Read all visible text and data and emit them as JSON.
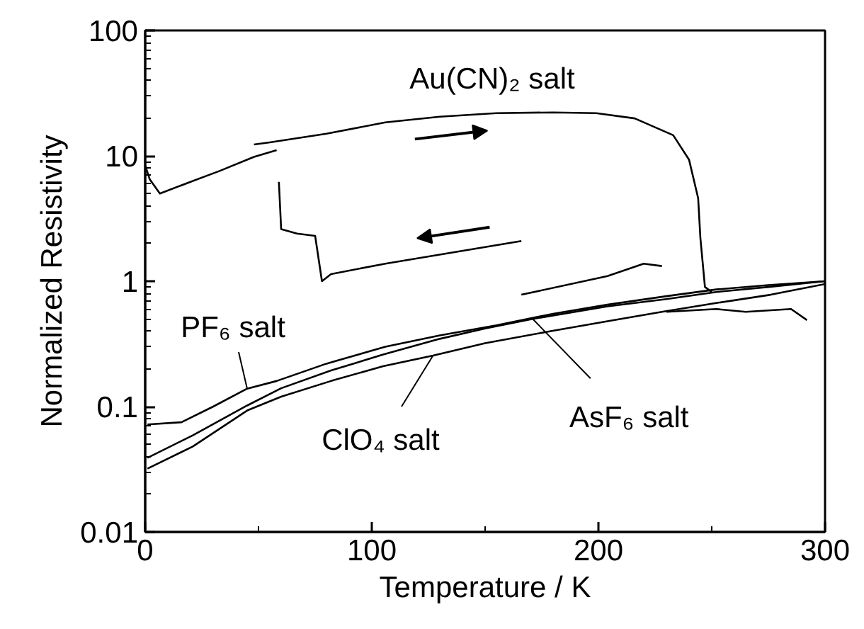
{
  "chart_data": {
    "type": "line",
    "xlabel": "Temperature / K",
    "ylabel": "Normalized Resistivity",
    "log": "y",
    "xlim": [
      0,
      300
    ],
    "ylim": [
      0.01,
      100
    ],
    "xticks": [
      0,
      {
        "value": 50,
        "label": null
      },
      100,
      {
        "value": 150,
        "label": null
      },
      200,
      {
        "value": 250,
        "label": null
      },
      300
    ],
    "yticks": [
      0.01,
      {
        "value": 0.02,
        "label": null
      },
      {
        "value": 0.03,
        "label": null
      },
      {
        "value": 0.04,
        "label": null
      },
      {
        "value": 0.05,
        "label": null
      },
      {
        "value": 0.06,
        "label": null
      },
      {
        "value": 0.07,
        "label": null
      },
      {
        "value": 0.08,
        "label": null
      },
      {
        "value": 0.09,
        "label": null
      },
      0.1,
      {
        "value": 0.2,
        "label": null
      },
      {
        "value": 0.3,
        "label": null
      },
      {
        "value": 0.4,
        "label": null
      },
      {
        "value": 0.5,
        "label": null
      },
      {
        "value": 0.6,
        "label": null
      },
      {
        "value": 0.7,
        "label": null
      },
      {
        "value": 0.8,
        "label": null
      },
      {
        "value": 0.9,
        "label": null
      },
      1,
      {
        "value": 2,
        "label": null
      },
      {
        "value": 3,
        "label": null
      },
      {
        "value": 4,
        "label": null
      },
      {
        "value": 5,
        "label": null
      },
      {
        "value": 6,
        "label": null
      },
      {
        "value": 7,
        "label": null
      },
      {
        "value": 8,
        "label": null
      },
      {
        "value": 9,
        "label": null
      },
      10,
      {
        "value": 20,
        "label": null
      },
      {
        "value": 30,
        "label": null
      },
      {
        "value": 40,
        "label": null
      },
      {
        "value": 50,
        "label": null
      },
      {
        "value": 60,
        "label": null
      },
      {
        "value": 70,
        "label": null
      },
      {
        "value": 80,
        "label": null
      },
      {
        "value": 90,
        "label": null
      },
      100
    ],
    "grid": false,
    "marker": "none",
    "line_style": "solid",
    "series": [
      {
        "color": "#000000",
        "x": [
          1,
          16,
          30,
          45,
          58,
          80,
          106,
          130,
          155,
          180,
          204,
          230,
          252,
          275,
          300
        ],
        "values": [
          0.072,
          0.075,
          0.1,
          0.139,
          0.16,
          0.22,
          0.3,
          0.37,
          0.445,
          0.55,
          0.65,
          0.76,
          0.86,
          0.93,
          1.0
        ]
      },
      {
        "color": "#000000",
        "x": [
          1,
          21,
          45,
          60,
          82,
          105,
          130,
          150,
          171,
          204,
          230,
          252,
          275,
          300
        ],
        "values": [
          0.039,
          0.059,
          0.102,
          0.14,
          0.194,
          0.26,
          0.347,
          0.42,
          0.5,
          0.63,
          0.72,
          0.82,
          0.9,
          1.0
        ]
      },
      {
        "color": "#000000",
        "x": [
          1,
          21,
          45,
          60,
          82,
          105,
          127,
          150,
          179,
          204,
          228,
          252,
          276,
          300
        ],
        "values": [
          0.032,
          0.048,
          0.093,
          0.12,
          0.16,
          0.21,
          0.255,
          0.32,
          0.4,
          0.48,
          0.57,
          0.67,
          0.78,
          0.95
        ]
      },
      {
        "color": "#000000",
        "x": [
          0,
          2,
          6.5,
          20,
          33,
          48,
          58
        ],
        "values": [
          8.4,
          6.5,
          5.0,
          6.2,
          7.6,
          9.8,
          11.1
        ]
      },
      {
        "color": "#000000",
        "x": [
          48,
          55,
          80,
          106,
          130,
          155,
          180,
          199,
          216,
          233,
          240,
          244,
          245,
          247,
          250
        ],
        "values": [
          12.3,
          12.8,
          15,
          18.5,
          20.5,
          21.9,
          22.2,
          21.9,
          19.9,
          14.6,
          9.3,
          4.6,
          2.2,
          0.9,
          0.82
        ]
      },
      {
        "color": "#000000",
        "x": [
          59,
          60,
          67,
          75,
          78,
          82,
          106,
          166
        ],
        "values": [
          6.2,
          2.6,
          2.4,
          2.3,
          1.0,
          1.14,
          1.38,
          2.09
        ]
      },
      {
        "color": "#000000",
        "x": [
          166,
          204,
          220,
          228
        ],
        "values": [
          0.78,
          1.1,
          1.38,
          1.32
        ]
      },
      {
        "color": "#000000",
        "x": [
          230,
          252,
          265,
          285,
          292
        ],
        "values": [
          0.57,
          0.6,
          0.57,
          0.6,
          0.49
        ]
      }
    ],
    "annotations": [
      {
        "text": "PF₆ salt",
        "x": 45,
        "y": 0.139
      },
      {
        "text": "ClO₄ salt",
        "x": 127,
        "y": 0.255
      },
      {
        "text": "AsF₆ salt",
        "x": 171,
        "y": 0.5
      },
      {
        "text": "Au(CN)₂ salt",
        "x": 155,
        "y": 21.9
      }
    ]
  }
}
